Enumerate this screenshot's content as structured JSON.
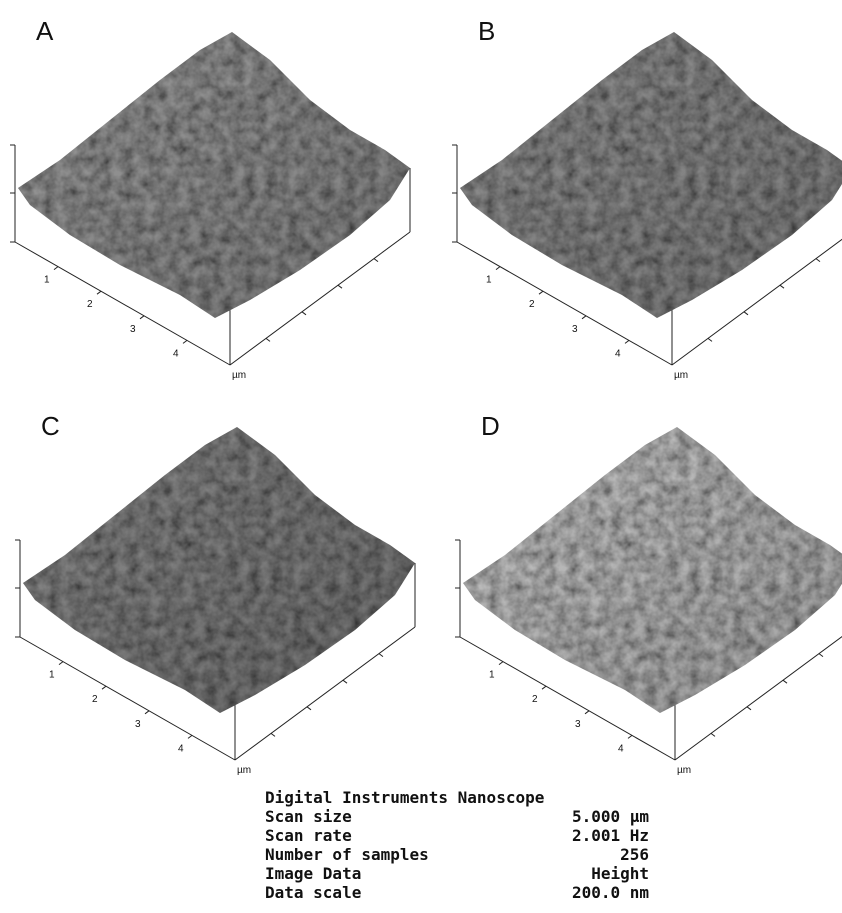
{
  "panels": [
    {
      "label": "A",
      "ticks": [
        "1",
        "2",
        "3",
        "4"
      ],
      "unit": "µm"
    },
    {
      "label": "B",
      "ticks": [
        "1",
        "2",
        "3",
        "4"
      ],
      "unit": "µm"
    },
    {
      "label": "C",
      "ticks": [
        "1",
        "2",
        "3",
        "4"
      ],
      "unit": "µm"
    },
    {
      "label": "D",
      "ticks": [
        "1",
        "2",
        "3",
        "4"
      ],
      "unit": "µm"
    }
  ],
  "info": {
    "title": "Digital Instruments Nanoscope",
    "rows": [
      [
        "Scan size",
        "5.000 µm"
      ],
      [
        "Scan rate",
        "2.001 Hz"
      ],
      [
        "Number of samples",
        "256"
      ],
      [
        "Image Data",
        "Height"
      ],
      [
        "Data scale",
        "200.0 nm"
      ]
    ]
  }
}
